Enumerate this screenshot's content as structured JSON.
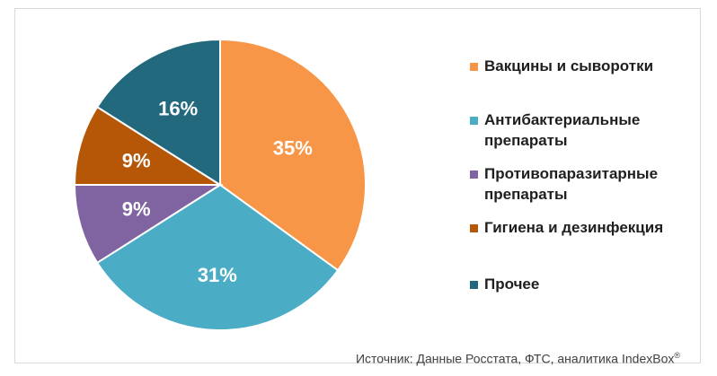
{
  "chart_data": {
    "type": "pie",
    "categories": [
      "Вакцины и сыворотки",
      "Антибактериальные препараты",
      "Противопаразитарные препараты",
      "Гигиена и дезинфекция",
      "Прочее"
    ],
    "values": [
      35,
      31,
      9,
      9,
      16
    ],
    "data_labels": [
      "35%",
      "31%",
      "9%",
      "9%",
      "16%"
    ],
    "colors": [
      "#f79646",
      "#4bacc6",
      "#8064a2",
      "#b65708",
      "#23697e"
    ],
    "start_angle_deg": 0,
    "direction": "clockwise",
    "legend_position": "right"
  },
  "source": {
    "text": "Источник: Данные Росстата, ФТС, аналитика IndexBox",
    "mark": "®"
  }
}
